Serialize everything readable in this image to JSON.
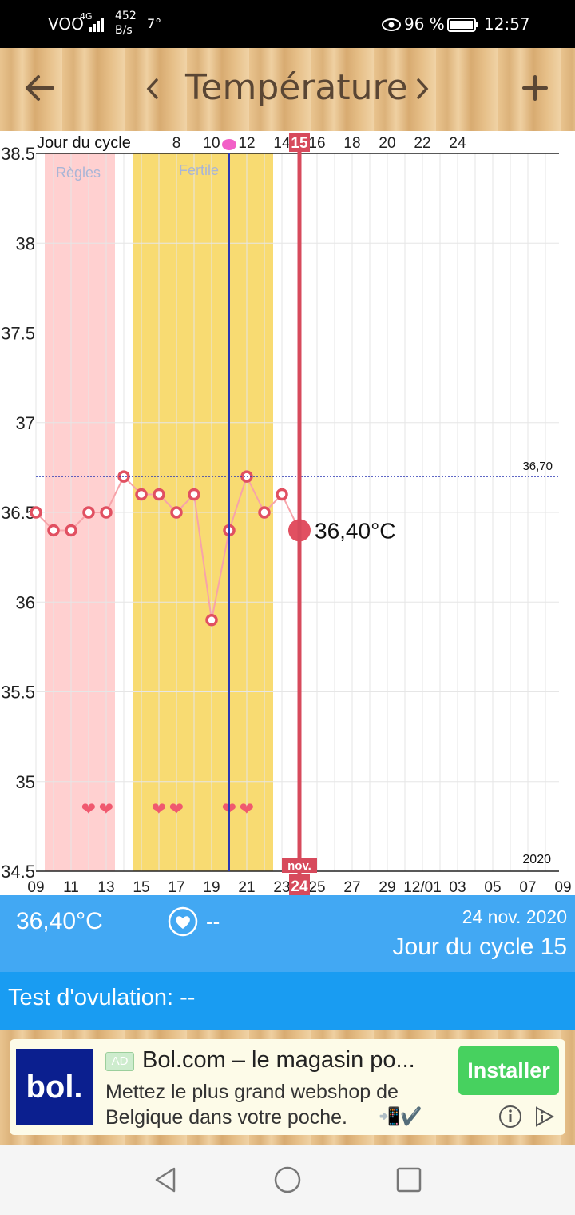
{
  "status_bar": {
    "carrier": "VOO",
    "network": "4G",
    "speed_value": "452",
    "speed_unit": "B/s",
    "temp": "7°",
    "battery": "96 %",
    "time": "12:57"
  },
  "header": {
    "back_icon": "arrow-left-icon",
    "prev_icon": "chevron-left-icon",
    "title": "Température",
    "next_icon": "chevron-right-icon",
    "add_icon": "plus-icon"
  },
  "chart": {
    "cycle_label": "Jour du cycle",
    "period_label": "Règles",
    "fertile_label": "Fertile",
    "coverline_label": "36,70",
    "selected_value_label": "36,40°C",
    "selected_cycle_day": "15",
    "selected_month": "nov.",
    "selected_day": "24",
    "year": "2020",
    "colors": {
      "period": "#ffd0d0",
      "fertile": "#f8db72",
      "line": "#f7a3a9",
      "marker": "#e15061",
      "selected": "#d74a5c",
      "ovulation_line": "#2a37b4"
    }
  },
  "chart_data": {
    "type": "line",
    "x": [
      "09",
      "10",
      "11",
      "12",
      "13",
      "14",
      "15",
      "16",
      "17",
      "18",
      "19",
      "20",
      "21",
      "22",
      "23",
      "24"
    ],
    "y": [
      36.5,
      36.4,
      36.4,
      36.5,
      36.5,
      36.7,
      36.6,
      36.6,
      36.5,
      36.6,
      35.9,
      36.4,
      36.7,
      36.5,
      36.6,
      36.4
    ],
    "ylim": [
      34.5,
      38.5
    ],
    "y_ticks": [
      "38.5",
      "38",
      "37.5",
      "37",
      "36.5",
      "36",
      "35.5",
      "35",
      "34.5"
    ],
    "y_tick_values": [
      38.5,
      38,
      37.5,
      37,
      36.5,
      36,
      35.5,
      35,
      34.5
    ],
    "x_ticks": [
      "09",
      "11",
      "13",
      "15",
      "17",
      "19",
      "21",
      "23",
      "24",
      "25",
      "27",
      "29",
      "12/01",
      "03",
      "05",
      "07",
      "09"
    ],
    "cycle_day_ticks": [
      "8",
      "10",
      "12",
      "14",
      "15",
      "16",
      "18",
      "20",
      "22",
      "24"
    ],
    "coverline": 36.7,
    "selected": {
      "x": "24",
      "y": 36.4
    },
    "ovulation_day": "20",
    "period_days": [
      "10",
      "11",
      "12",
      "13"
    ],
    "fertile_days": [
      "15",
      "16",
      "17",
      "18",
      "19",
      "20",
      "21",
      "22"
    ],
    "intercourse_days": [
      "12",
      "13",
      "16",
      "17",
      "20",
      "21"
    ],
    "grid": true
  },
  "info_bar": {
    "temperature": "36,40°C",
    "heart_icon": "heart-icon",
    "heart_value": "--",
    "date": "24 nov. 2020",
    "cycle_day": "Jour du cycle 15"
  },
  "ovulation_test": {
    "text": "Test d'ovulation: --"
  },
  "ad": {
    "logo_text": "bol.",
    "badge": "AD",
    "title": "Bol.com – le magasin po...",
    "desc_line1": "Mettez le plus grand webshop de",
    "desc_line2": "Belgique dans votre poche.",
    "emoji": "📲✔️",
    "install_label": "Installer",
    "logo_color": "#0b1f8f",
    "button_color": "#47d15f"
  },
  "nav": {
    "back": "triangle-back-icon",
    "home": "circle-home-icon",
    "recent": "square-recent-icon"
  }
}
